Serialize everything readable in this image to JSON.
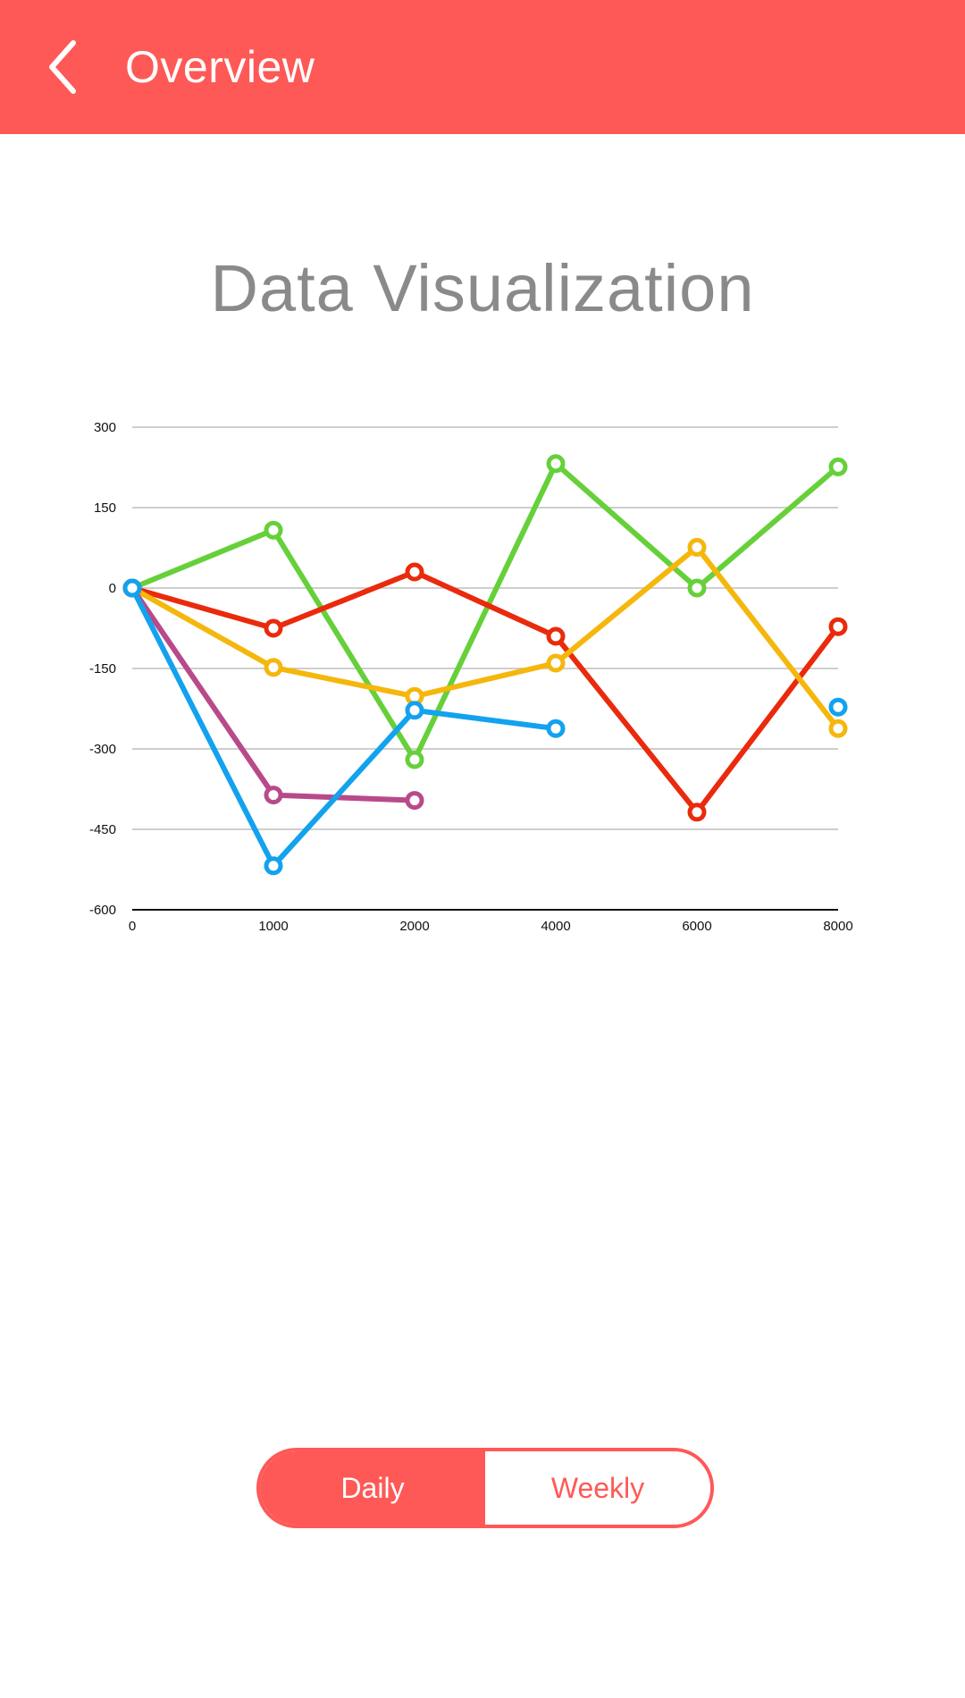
{
  "header": {
    "title": "Overview",
    "back_icon": "chevron-left-icon",
    "background_color": "#fe5956"
  },
  "page_title": "Data Visualization",
  "segmented_control": {
    "options": [
      "Daily",
      "Weekly"
    ],
    "selected": "Daily",
    "accent_color": "#fe5956"
  },
  "chart_data": {
    "type": "line",
    "x": [
      0,
      1000,
      2000,
      4000,
      6000,
      8000
    ],
    "x_tick_labels": [
      "0",
      "1000",
      "2000",
      "4000",
      "6000",
      "8000"
    ],
    "y_ticks": [
      300,
      150,
      0,
      -150,
      -300,
      -450,
      -600
    ],
    "ylim": [
      -600,
      300
    ],
    "grid": true,
    "legend": "none",
    "series": [
      {
        "color": "#66d03a",
        "values": [
          0,
          108,
          -320,
          232,
          0,
          226
        ]
      },
      {
        "color": "#ea2a0c",
        "values": [
          0,
          -75,
          30,
          -90,
          -418,
          -72
        ]
      },
      {
        "color": "#f5b70c",
        "values": [
          0,
          -148,
          -202,
          -140,
          76,
          -262
        ]
      },
      {
        "color": "#b84a8a",
        "values": [
          0,
          -386,
          -396,
          null,
          null,
          null
        ]
      },
      {
        "color": "#12a2ee",
        "values": [
          0,
          -518,
          -228,
          -262,
          null,
          -222
        ]
      }
    ]
  }
}
